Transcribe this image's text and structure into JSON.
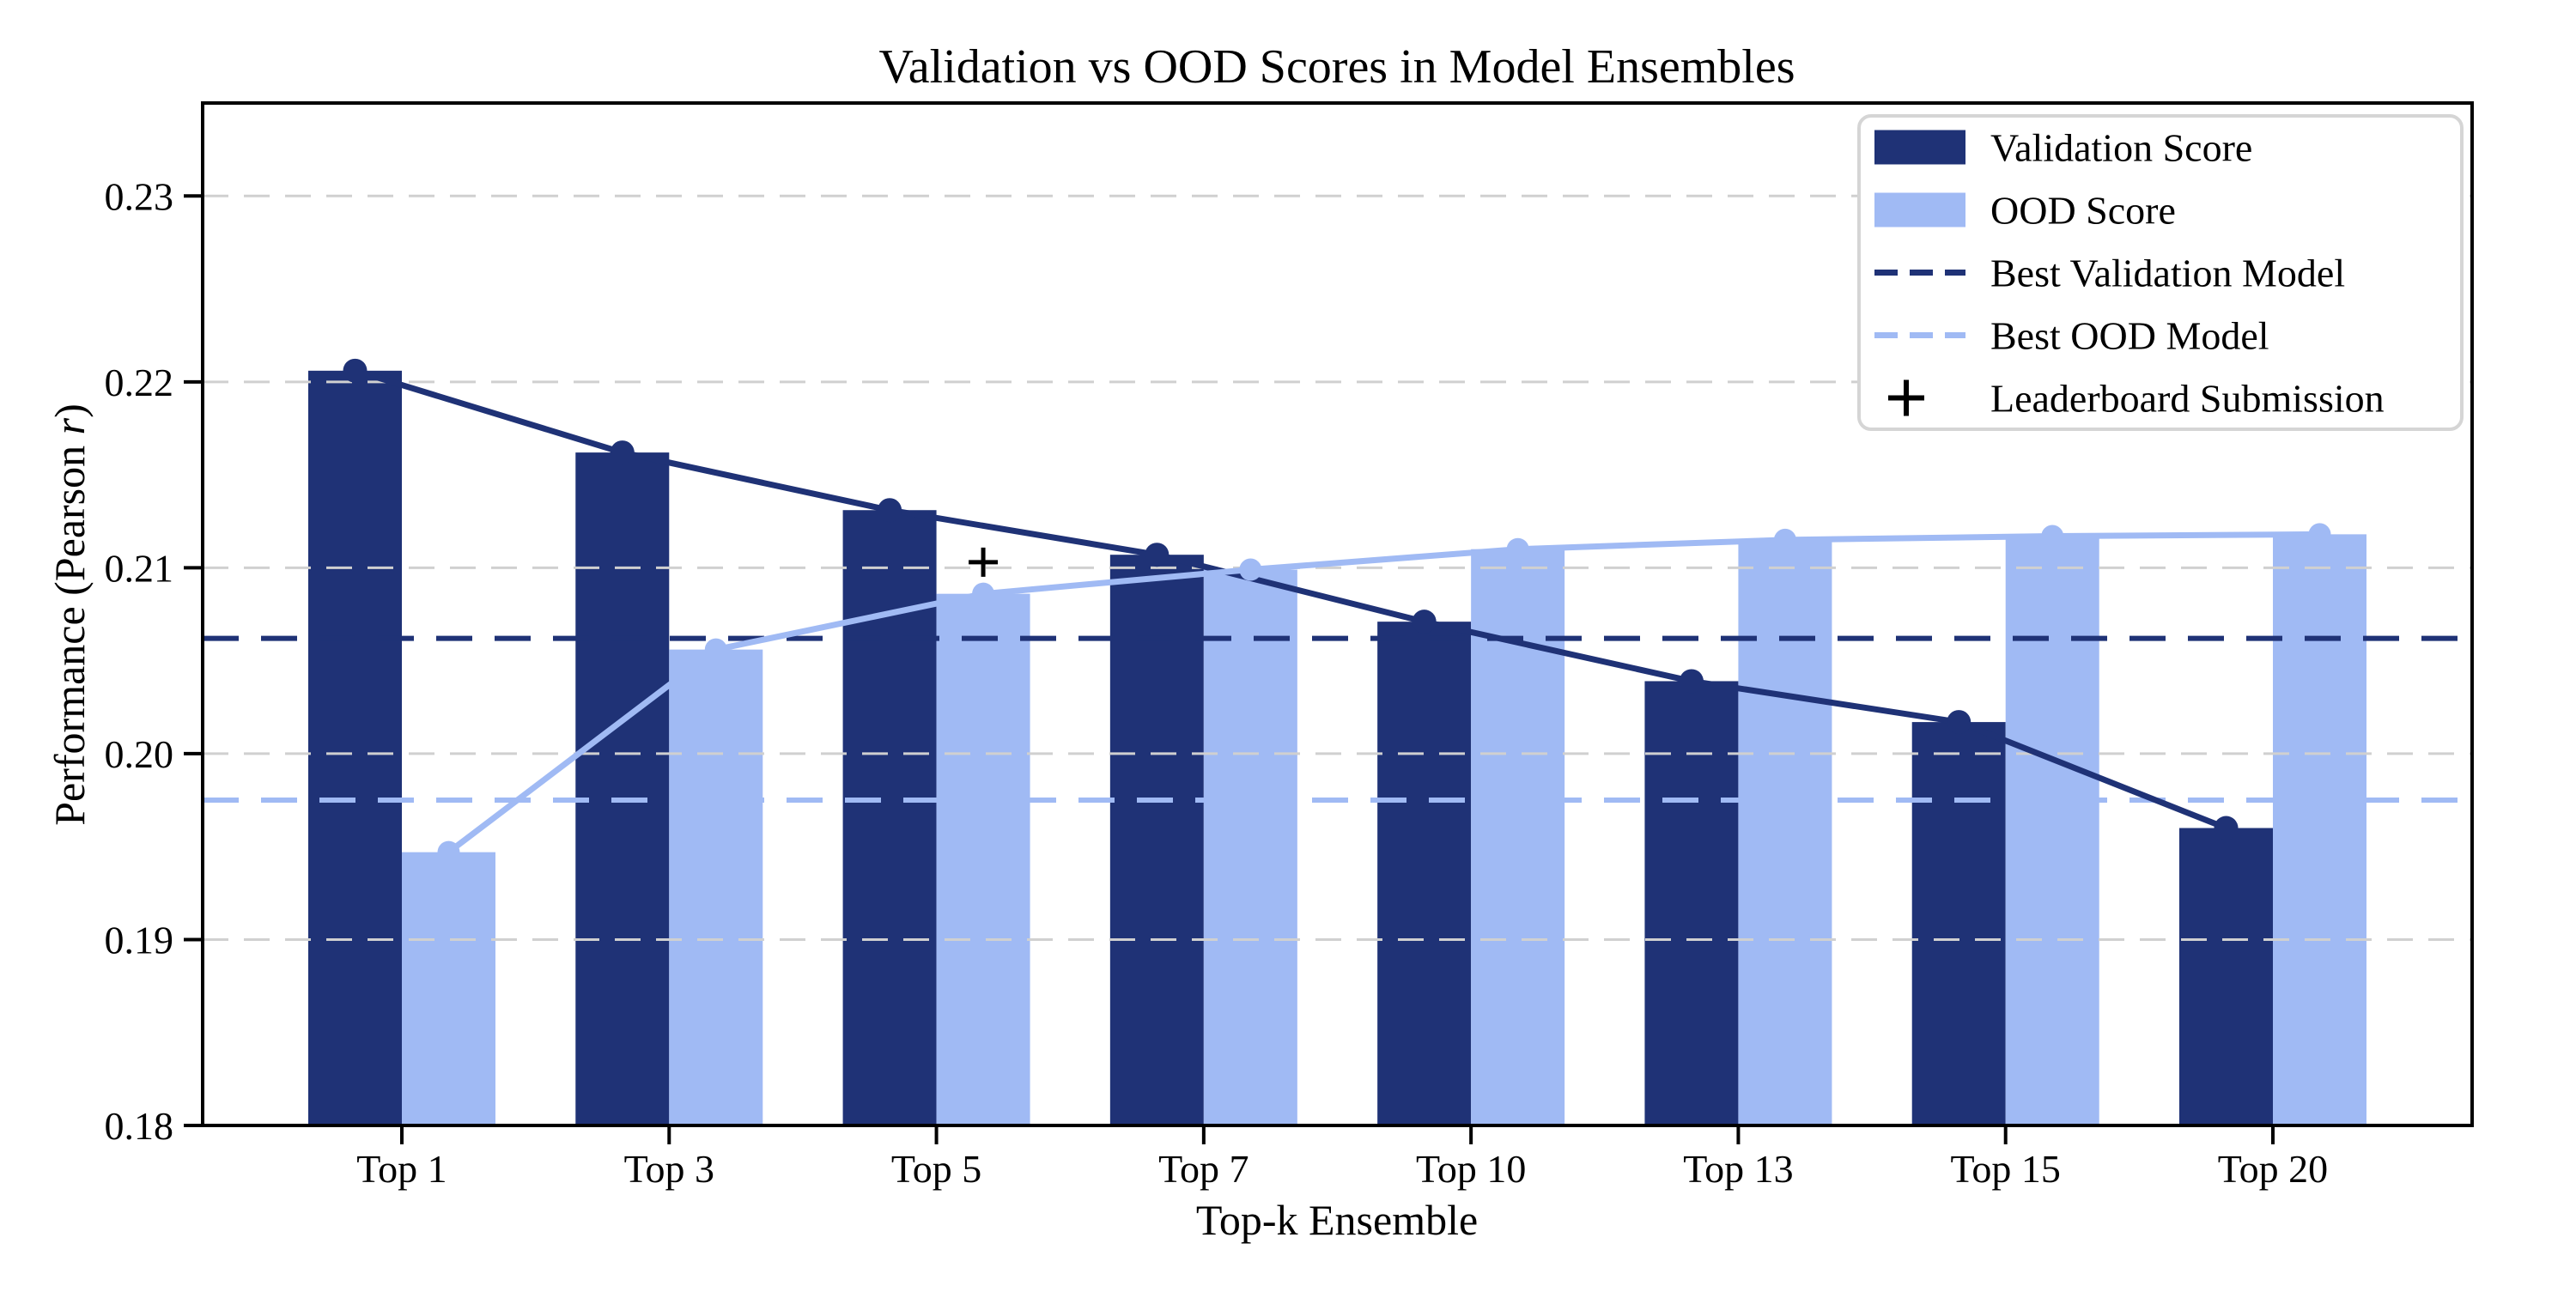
{
  "chart_data": {
    "type": "bar",
    "title": "Validation vs OOD Scores in Model Ensembles",
    "xlabel": "Top-k Ensemble",
    "ylabel": "Performance (Pearson r)",
    "ylabel_parts": {
      "prefix": "Performance (Pearson ",
      "italic": "r",
      "suffix": ")"
    },
    "categories": [
      "Top 1",
      "Top 3",
      "Top 5",
      "Top 7",
      "Top 10",
      "Top 13",
      "Top 15",
      "Top 20"
    ],
    "series": [
      {
        "name": "Validation Score",
        "color": "#1F3276",
        "marker": "circle",
        "values": [
          0.2206,
          0.2162,
          0.2131,
          0.2107,
          0.2071,
          0.2039,
          0.2017,
          0.196
        ]
      },
      {
        "name": "OOD Score",
        "color": "#A0BAF4",
        "marker": "circle",
        "values": [
          0.1947,
          0.2056,
          0.2086,
          0.2099,
          0.211,
          0.2115,
          0.2117,
          0.2118
        ]
      }
    ],
    "reference_lines": [
      {
        "label": "Best Validation Model",
        "value": 0.2062,
        "color": "#1F3276",
        "style": "dashed"
      },
      {
        "label": "Best OOD Model",
        "value": 0.1975,
        "color": "#A0BAF4",
        "style": "dashed"
      }
    ],
    "annotation": {
      "label": "Leaderboard Submission",
      "marker": "+",
      "color": "#000000",
      "category": "Top 5",
      "series": "OOD Score",
      "value": 0.2103
    },
    "ylim": [
      0.18,
      0.235
    ],
    "yticks": [
      0.18,
      0.19,
      0.2,
      0.21,
      0.22,
      0.23
    ],
    "ytick_decimals": 2,
    "grid": {
      "axis": "y",
      "style": "dashed",
      "color": "#D0D0D0"
    },
    "legend": {
      "position": "upper right",
      "items": [
        {
          "label": "Validation Score",
          "swatch": "rect",
          "color": "#1F3276"
        },
        {
          "label": "OOD Score",
          "swatch": "rect",
          "color": "#A0BAF4"
        },
        {
          "label": "Best Validation Model",
          "swatch": "dashline",
          "color": "#1F3276"
        },
        {
          "label": "Best OOD Model",
          "swatch": "dashline",
          "color": "#A0BAF4"
        },
        {
          "label": "Leaderboard Submission",
          "swatch": "plus",
          "color": "#000000"
        }
      ]
    }
  }
}
